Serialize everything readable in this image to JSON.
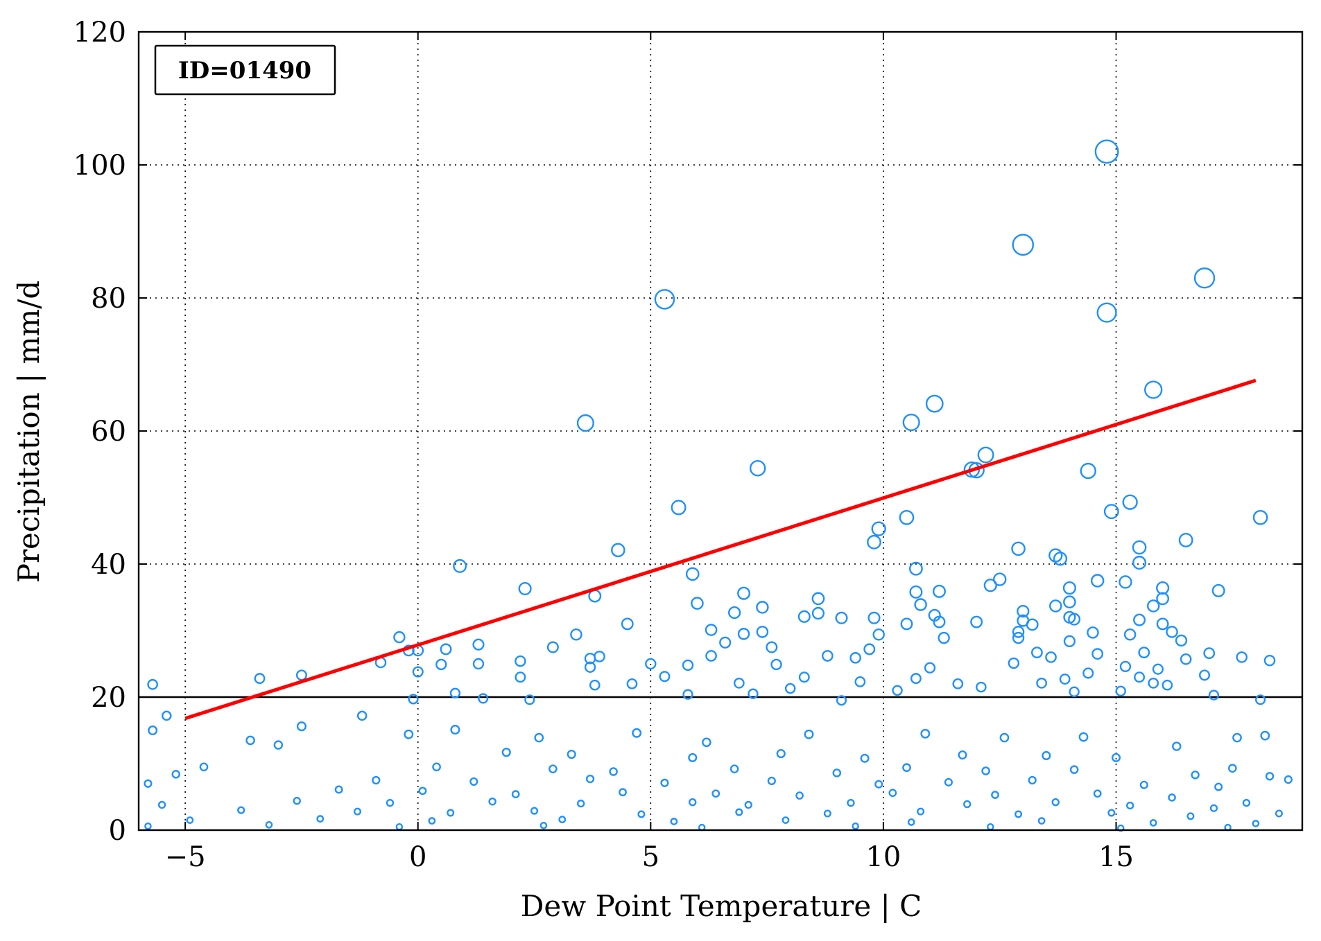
{
  "chart_data": {
    "type": "scatter",
    "annotation": "ID=01490",
    "xlabel": "Dew Point Temperature | C",
    "ylabel": "Precipitation | mm/d",
    "xlim": [
      -6,
      19
    ],
    "ylim": [
      0,
      120
    ],
    "xticks": [
      -5,
      0,
      5,
      10,
      15
    ],
    "xtick_labels": [
      "−5",
      "0",
      "5",
      "10",
      "15"
    ],
    "yticks": [
      0,
      20,
      40,
      60,
      80,
      100,
      120
    ],
    "ytick_labels": [
      "0",
      "20",
      "40",
      "60",
      "80",
      "100",
      "120"
    ],
    "grid": true,
    "marker_color": "#1e90ff",
    "fit_line_color": "#ff0000",
    "threshold_line_color": "#000000",
    "threshold": 20,
    "fit_line": {
      "x": [
        -5,
        18
      ],
      "y": [
        16.8,
        67.6
      ]
    },
    "points": [
      [
        14.8,
        102
      ],
      [
        13.0,
        88
      ],
      [
        16.9,
        83
      ],
      [
        5.3,
        79.8
      ],
      [
        14.8,
        77.8
      ],
      [
        15.8,
        66.2
      ],
      [
        11.1,
        64.1
      ],
      [
        10.6,
        61.3
      ],
      [
        3.6,
        61.2
      ],
      [
        12.2,
        56.4
      ],
      [
        12.0,
        54.1
      ],
      [
        11.9,
        54.2
      ],
      [
        7.3,
        54.4
      ],
      [
        14.4,
        54.0
      ],
      [
        15.3,
        49.3
      ],
      [
        5.6,
        48.5
      ],
      [
        14.9,
        47.9
      ],
      [
        18.1,
        47.0
      ],
      [
        10.5,
        47.0
      ],
      [
        9.9,
        45.3
      ],
      [
        9.8,
        43.3
      ],
      [
        16.5,
        43.6
      ],
      [
        12.9,
        42.3
      ],
      [
        4.3,
        42.1
      ],
      [
        15.5,
        42.5
      ],
      [
        13.7,
        41.3
      ],
      [
        13.8,
        40.8
      ],
      [
        15.5,
        40.2
      ],
      [
        0.9,
        39.7
      ],
      [
        10.7,
        39.3
      ],
      [
        12.5,
        37.7
      ],
      [
        14.6,
        37.5
      ],
      [
        15.2,
        37.3
      ],
      [
        2.3,
        36.3
      ],
      [
        12.3,
        36.8
      ],
      [
        14.0,
        36.4
      ],
      [
        17.2,
        36.0
      ],
      [
        11.2,
        35.9
      ],
      [
        3.8,
        35.2
      ],
      [
        7.0,
        35.6
      ],
      [
        10.7,
        35.8
      ],
      [
        16.0,
        36.4
      ],
      [
        6.0,
        34.1
      ],
      [
        5.9,
        38.5
      ],
      [
        8.6,
        34.8
      ],
      [
        14.0,
        34.3
      ],
      [
        16.0,
        34.8
      ],
      [
        7.4,
        33.5
      ],
      [
        15.8,
        33.7
      ],
      [
        10.8,
        33.9
      ],
      [
        13.0,
        32.9
      ],
      [
        13.7,
        33.7
      ],
      [
        6.8,
        32.7
      ],
      [
        8.6,
        32.6
      ],
      [
        11.1,
        32.3
      ],
      [
        14.0,
        32.0
      ],
      [
        8.3,
        32.1
      ],
      [
        9.1,
        31.9
      ],
      [
        9.8,
        31.9
      ],
      [
        15.5,
        31.6
      ],
      [
        12.0,
        31.3
      ],
      [
        13.0,
        31.5
      ],
      [
        14.1,
        31.7
      ],
      [
        16.0,
        31.0
      ],
      [
        10.5,
        31.0
      ],
      [
        4.5,
        31.0
      ],
      [
        13.2,
        30.9
      ],
      [
        11.2,
        31.3
      ],
      [
        6.3,
        30.1
      ],
      [
        9.9,
        29.4
      ],
      [
        16.2,
        29.8
      ],
      [
        7.0,
        29.5
      ],
      [
        12.9,
        29.8
      ],
      [
        14.5,
        29.7
      ],
      [
        3.4,
        29.4
      ],
      [
        15.3,
        29.4
      ],
      [
        7.4,
        29.8
      ],
      [
        -0.4,
        29.0
      ],
      [
        11.3,
        28.9
      ],
      [
        12.9,
        28.9
      ],
      [
        14.0,
        28.4
      ],
      [
        16.4,
        28.5
      ],
      [
        6.6,
        28.2
      ],
      [
        0.6,
        27.2
      ],
      [
        1.3,
        27.9
      ],
      [
        2.9,
        27.5
      ],
      [
        7.6,
        27.5
      ],
      [
        -0.2,
        27.0
      ],
      [
        0.0,
        27.0
      ],
      [
        9.7,
        27.2
      ],
      [
        13.3,
        26.7
      ],
      [
        15.6,
        26.7
      ],
      [
        17.0,
        26.6
      ],
      [
        14.6,
        26.5
      ],
      [
        8.8,
        26.2
      ],
      [
        13.6,
        26.0
      ],
      [
        3.9,
        26.1
      ],
      [
        3.7,
        25.8
      ],
      [
        6.3,
        26.2
      ],
      [
        2.2,
        25.4
      ],
      [
        9.4,
        25.9
      ],
      [
        16.5,
        25.7
      ],
      [
        17.7,
        26.0
      ],
      [
        18.3,
        25.5
      ],
      [
        1.3,
        25.0
      ],
      [
        0.5,
        24.9
      ],
      [
        5.0,
        25.0
      ],
      [
        5.8,
        24.8
      ],
      [
        7.7,
        24.9
      ],
      [
        12.8,
        25.1
      ],
      [
        15.2,
        24.6
      ],
      [
        3.7,
        24.5
      ],
      [
        11.0,
        24.4
      ],
      [
        15.9,
        24.2
      ],
      [
        -0.8,
        25.2
      ],
      [
        0.0,
        23.8
      ],
      [
        14.4,
        23.6
      ],
      [
        16.9,
        23.3
      ],
      [
        5.3,
        23.1
      ],
      [
        8.3,
        23.0
      ],
      [
        10.7,
        22.8
      ],
      [
        13.9,
        22.7
      ],
      [
        15.5,
        23.0
      ],
      [
        -3.4,
        22.8
      ],
      [
        -2.5,
        23.3
      ],
      [
        2.2,
        23.0
      ],
      [
        4.6,
        22.0
      ],
      [
        6.9,
        22.1
      ],
      [
        9.5,
        22.3
      ],
      [
        11.6,
        22.0
      ],
      [
        13.4,
        22.1
      ],
      [
        15.8,
        22.1
      ],
      [
        -5.7,
        21.9
      ],
      [
        3.8,
        21.8
      ],
      [
        8.0,
        21.3
      ],
      [
        12.1,
        21.5
      ],
      [
        16.1,
        21.8
      ],
      [
        0.8,
        20.6
      ],
      [
        5.8,
        20.4
      ],
      [
        7.2,
        20.5
      ],
      [
        10.3,
        21.0
      ],
      [
        14.1,
        20.8
      ],
      [
        15.1,
        20.9
      ],
      [
        17.1,
        20.3
      ],
      [
        1.4,
        19.8
      ],
      [
        2.4,
        19.6
      ],
      [
        9.1,
        19.5
      ],
      [
        -0.1,
        19.7
      ],
      [
        18.1,
        19.6
      ],
      [
        -5.4,
        17.2
      ],
      [
        -5.7,
        15.0
      ],
      [
        -1.2,
        17.2
      ],
      [
        -2.5,
        15.6
      ],
      [
        -3.6,
        13.5
      ],
      [
        -3.0,
        12.8
      ],
      [
        -4.6,
        9.5
      ],
      [
        -5.2,
        8.4
      ],
      [
        -5.8,
        7.0
      ],
      [
        -5.5,
        3.8
      ],
      [
        17.6,
        13.9
      ],
      [
        18.2,
        14.2
      ],
      [
        18.3,
        8.1
      ],
      [
        18.7,
        7.6
      ],
      [
        17.8,
        4.1
      ],
      [
        17.5,
        9.3
      ],
      [
        18.5,
        2.5
      ],
      [
        -0.2,
        14.4
      ],
      [
        0.8,
        15.1
      ],
      [
        2.6,
        13.9
      ],
      [
        4.7,
        14.6
      ],
      [
        6.2,
        13.2
      ],
      [
        8.4,
        14.4
      ],
      [
        10.9,
        14.5
      ],
      [
        12.6,
        13.9
      ],
      [
        14.3,
        14.0
      ],
      [
        16.3,
        12.6
      ],
      [
        1.9,
        11.7
      ],
      [
        3.3,
        11.4
      ],
      [
        5.9,
        10.9
      ],
      [
        7.8,
        11.5
      ],
      [
        9.6,
        10.8
      ],
      [
        11.7,
        11.3
      ],
      [
        13.5,
        11.2
      ],
      [
        15.0,
        10.9
      ],
      [
        0.4,
        9.5
      ],
      [
        2.9,
        9.2
      ],
      [
        4.2,
        8.8
      ],
      [
        6.8,
        9.2
      ],
      [
        9.0,
        8.6
      ],
      [
        10.5,
        9.4
      ],
      [
        12.2,
        8.9
      ],
      [
        14.1,
        9.1
      ],
      [
        16.7,
        8.3
      ],
      [
        -0.9,
        7.5
      ],
      [
        1.2,
        7.3
      ],
      [
        3.7,
        7.7
      ],
      [
        5.3,
        7.1
      ],
      [
        7.6,
        7.4
      ],
      [
        9.9,
        6.9
      ],
      [
        11.4,
        7.2
      ],
      [
        13.2,
        7.5
      ],
      [
        15.6,
        6.8
      ],
      [
        17.2,
        6.5
      ],
      [
        -1.7,
        6.1
      ],
      [
        0.1,
        5.9
      ],
      [
        2.1,
        5.4
      ],
      [
        4.4,
        5.7
      ],
      [
        6.4,
        5.5
      ],
      [
        8.2,
        5.2
      ],
      [
        10.2,
        5.6
      ],
      [
        12.4,
        5.3
      ],
      [
        14.6,
        5.5
      ],
      [
        16.2,
        4.9
      ],
      [
        -2.6,
        4.4
      ],
      [
        -0.6,
        4.1
      ],
      [
        1.6,
        4.3
      ],
      [
        3.5,
        4.0
      ],
      [
        5.9,
        4.2
      ],
      [
        7.1,
        3.8
      ],
      [
        9.3,
        4.1
      ],
      [
        11.8,
        3.9
      ],
      [
        13.7,
        4.2
      ],
      [
        15.3,
        3.7
      ],
      [
        17.1,
        3.3
      ],
      [
        -3.8,
        3.0
      ],
      [
        -1.3,
        2.8
      ],
      [
        0.7,
        2.6
      ],
      [
        2.5,
        2.9
      ],
      [
        4.8,
        2.4
      ],
      [
        6.9,
        2.7
      ],
      [
        8.8,
        2.5
      ],
      [
        10.8,
        2.8
      ],
      [
        12.9,
        2.4
      ],
      [
        14.9,
        2.6
      ],
      [
        16.6,
        2.1
      ],
      [
        -4.9,
        1.5
      ],
      [
        -2.1,
        1.7
      ],
      [
        0.3,
        1.4
      ],
      [
        3.1,
        1.6
      ],
      [
        5.5,
        1.3
      ],
      [
        7.9,
        1.5
      ],
      [
        10.6,
        1.2
      ],
      [
        13.4,
        1.4
      ],
      [
        15.8,
        1.1
      ],
      [
        18.0,
        1.0
      ],
      [
        -5.8,
        0.6
      ],
      [
        -3.2,
        0.8
      ],
      [
        -0.4,
        0.5
      ],
      [
        2.7,
        0.7
      ],
      [
        6.1,
        0.4
      ],
      [
        9.4,
        0.6
      ],
      [
        12.3,
        0.5
      ],
      [
        15.1,
        0.3
      ],
      [
        17.4,
        0.4
      ]
    ]
  }
}
